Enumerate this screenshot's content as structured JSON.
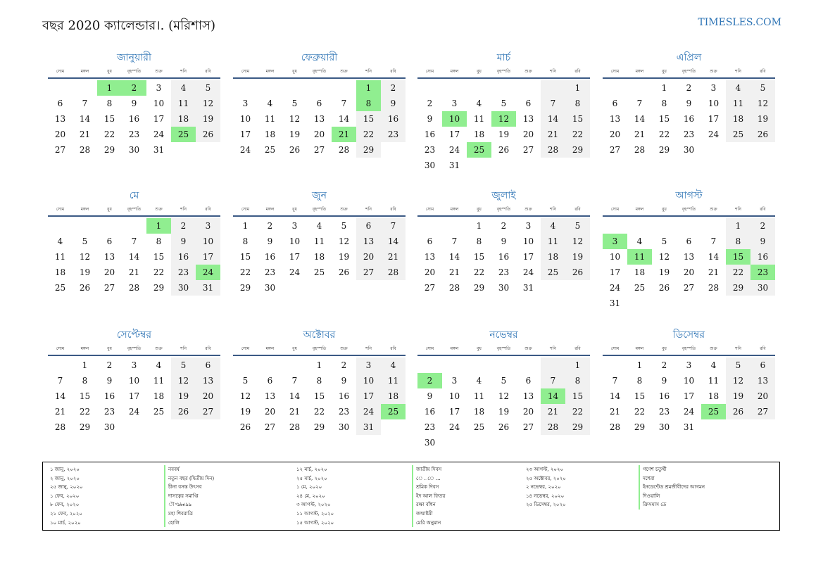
{
  "header": {
    "title": "বছর 2020 ক্যালেন্ডার।. (মরিশাস)",
    "brand": "TIMESLES.COM"
  },
  "weekdays": [
    "সোম",
    "মঙ্গল",
    "বুধ",
    "বৃহস্পতি",
    "শুক্র",
    "শনি",
    "রবি"
  ],
  "colors": {
    "accent": "#2e74b5",
    "holiday": "#90ee90",
    "weekend": "#f1f1f1"
  },
  "months": [
    {
      "name": "জানুয়ারী",
      "start": 2,
      "days": 31,
      "holidays": [
        1,
        2,
        25
      ]
    },
    {
      "name": "ফেব্রুয়ারী",
      "start": 5,
      "days": 29,
      "holidays": [
        1,
        8,
        21
      ]
    },
    {
      "name": "মার্চ",
      "start": 6,
      "days": 31,
      "holidays": [
        10,
        12,
        25
      ]
    },
    {
      "name": "এপ্রিল",
      "start": 2,
      "days": 30,
      "holidays": []
    },
    {
      "name": "মে",
      "start": 4,
      "days": 31,
      "holidays": [
        1,
        24
      ]
    },
    {
      "name": "জুন",
      "start": 0,
      "days": 30,
      "holidays": []
    },
    {
      "name": "জুলাই",
      "start": 2,
      "days": 31,
      "holidays": []
    },
    {
      "name": "আগস্ট",
      "start": 5,
      "days": 31,
      "holidays": [
        3,
        11,
        15,
        23
      ]
    },
    {
      "name": "সেপ্টেম্বর",
      "start": 1,
      "days": 30,
      "holidays": []
    },
    {
      "name": "অক্টোবর",
      "start": 3,
      "days": 31,
      "holidays": [
        25
      ]
    },
    {
      "name": "নভেম্বর",
      "start": 6,
      "days": 30,
      "holidays": [
        2,
        14
      ]
    },
    {
      "name": "ডিসেম্বর",
      "start": 1,
      "days": 31,
      "holidays": [
        25
      ]
    }
  ],
  "holiday_columns": [
    [
      {
        "date": "১ জানু, ২০২০",
        "name": "নববর্ষ"
      },
      {
        "date": "২ জানু, ২০২০",
        "name": "নতুন বছর (দ্বিতীয় দিন)"
      },
      {
        "date": "২৫ জানু, ২০২০",
        "name": "চীনা বসন্ত উৎসব"
      },
      {
        "date": "১ ফেব, ২০২০",
        "name": "দাসত্বের সমাপ্তি"
      },
      {
        "date": "৮ ফেব, ২০২০",
        "name": "ৗ৺ঌ৳৶৯ঌ"
      },
      {
        "date": "২১ ফেব, ২০২০",
        "name": "মহা শিবরাত্রি"
      },
      {
        "date": "১০ মার্চ, ২০২০",
        "name": "হোলি"
      }
    ],
    [
      {
        "date": "১২ মার্চ, ২০২০",
        "name": "জাতীয় দিবস"
      },
      {
        "date": "২৫ মার্চ, ২০২০",
        "name": "ে ..ে ..."
      },
      {
        "date": "১ মে, ২০২০",
        "name": "শ্রমিক দিবস"
      },
      {
        "date": "২৪ মে, ২০২০",
        "name": "ইদ আল ফিতর"
      },
      {
        "date": "৩ আগস্ট, ২০২০",
        "name": "রক্ষা বাঁধন"
      },
      {
        "date": "১১ আগস্ট, ২০২০",
        "name": "জন্মাষ্টমী"
      },
      {
        "date": "১৫ আগস্ট, ২০২০",
        "name": "মেরি অনুমান"
      }
    ],
    [
      {
        "date": "২৩ আগস্ট, ২০২০",
        "name": "গণেশ চতুর্থী"
      },
      {
        "date": "২৫ অক্টোবর, ২০২০",
        "name": "দশেরা"
      },
      {
        "date": "২ নভেম্বর, ২০২০",
        "name": "ইনডেন্টেড শ্রমজীবীদের আগমন"
      },
      {
        "date": "১৪ নভেম্বর, ২০২০",
        "name": "দিওয়ালি"
      },
      {
        "date": "২৫ ডিসেম্বর, ২০২০",
        "name": "ক্রিসমাস ডে"
      }
    ]
  ]
}
